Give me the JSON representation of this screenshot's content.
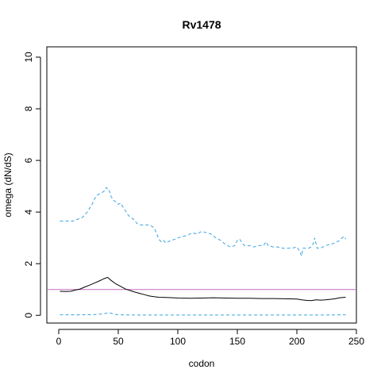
{
  "chart_data": {
    "type": "line",
    "title": "Rv1478",
    "xlabel": "codon",
    "ylabel": "omega (dN/dS)",
    "xlim": [
      -10,
      250
    ],
    "ylim": [
      -0.3,
      10.4
    ],
    "x_ticks": [
      0,
      50,
      100,
      150,
      200,
      250
    ],
    "y_ticks": [
      0,
      2,
      4,
      6,
      8,
      10
    ],
    "grid": false,
    "legend": "none",
    "reference_line": {
      "y": 1,
      "color": "#c46ec4"
    },
    "series": [
      {
        "style": "dashed",
        "color": "#3aa3e0",
        "x": [
          1,
          12,
          14,
          18,
          20,
          22,
          24,
          28,
          30,
          32,
          34,
          36,
          38,
          40,
          41,
          42,
          44,
          46,
          48,
          50,
          52,
          56,
          58,
          60,
          62,
          66,
          68,
          70,
          72,
          76,
          80,
          82,
          84,
          86,
          88,
          90,
          92,
          94,
          98,
          100,
          104,
          108,
          112,
          116,
          120,
          124,
          128,
          132,
          136,
          140,
          144,
          148,
          150,
          152,
          154,
          156,
          160,
          164,
          168,
          172,
          174,
          176,
          180,
          184,
          188,
          192,
          196,
          200,
          202,
          204,
          205,
          206,
          208,
          210,
          212,
          214,
          215,
          217,
          220,
          224,
          228,
          232,
          236,
          238,
          240,
          241
        ],
        "y": [
          3.65,
          3.65,
          3.7,
          3.75,
          3.8,
          3.9,
          4.0,
          4.3,
          4.5,
          4.65,
          4.7,
          4.75,
          4.8,
          4.95,
          4.9,
          4.9,
          4.6,
          4.45,
          4.4,
          4.3,
          4.35,
          4.05,
          3.9,
          3.8,
          3.75,
          3.55,
          3.5,
          3.5,
          3.5,
          3.5,
          3.4,
          3.2,
          2.95,
          2.85,
          2.9,
          2.8,
          2.85,
          2.9,
          2.95,
          3.0,
          3.05,
          3.1,
          3.2,
          3.15,
          3.25,
          3.2,
          3.15,
          3.0,
          2.9,
          2.75,
          2.65,
          2.7,
          2.9,
          2.95,
          2.8,
          2.7,
          2.7,
          2.65,
          2.7,
          2.7,
          2.85,
          2.7,
          2.65,
          2.65,
          2.6,
          2.6,
          2.6,
          2.65,
          2.5,
          2.3,
          2.6,
          2.6,
          2.6,
          2.6,
          2.65,
          2.8,
          3.0,
          2.6,
          2.6,
          2.7,
          2.75,
          2.8,
          2.9,
          3.0,
          3.05,
          2.95
        ]
      },
      {
        "style": "solid",
        "color": "#000000",
        "x": [
          1,
          6,
          10,
          14,
          18,
          22,
          26,
          30,
          34,
          38,
          41,
          44,
          48,
          52,
          56,
          60,
          64,
          68,
          72,
          76,
          80,
          84,
          90,
          96,
          100,
          110,
          120,
          130,
          140,
          150,
          160,
          170,
          180,
          190,
          200,
          204,
          208,
          212,
          216,
          220,
          224,
          228,
          232,
          236,
          241
        ],
        "y": [
          0.93,
          0.92,
          0.93,
          0.98,
          1.02,
          1.1,
          1.17,
          1.25,
          1.33,
          1.42,
          1.47,
          1.35,
          1.22,
          1.12,
          1.02,
          0.96,
          0.9,
          0.85,
          0.8,
          0.75,
          0.72,
          0.7,
          0.69,
          0.68,
          0.67,
          0.66,
          0.67,
          0.68,
          0.67,
          0.66,
          0.66,
          0.65,
          0.65,
          0.64,
          0.63,
          0.6,
          0.58,
          0.57,
          0.6,
          0.59,
          0.6,
          0.62,
          0.64,
          0.68,
          0.7
        ]
      },
      {
        "style": "dashed",
        "color": "#3aa3e0",
        "x": [
          1,
          20,
          30,
          36,
          40,
          42,
          44,
          46,
          50,
          60,
          80,
          100,
          150,
          200,
          220,
          241
        ],
        "y": [
          0.02,
          0.02,
          0.03,
          0.05,
          0.08,
          0.1,
          0.08,
          0.05,
          0.02,
          0.01,
          0.01,
          0.01,
          0.01,
          0.01,
          0.01,
          0.02
        ]
      }
    ]
  }
}
